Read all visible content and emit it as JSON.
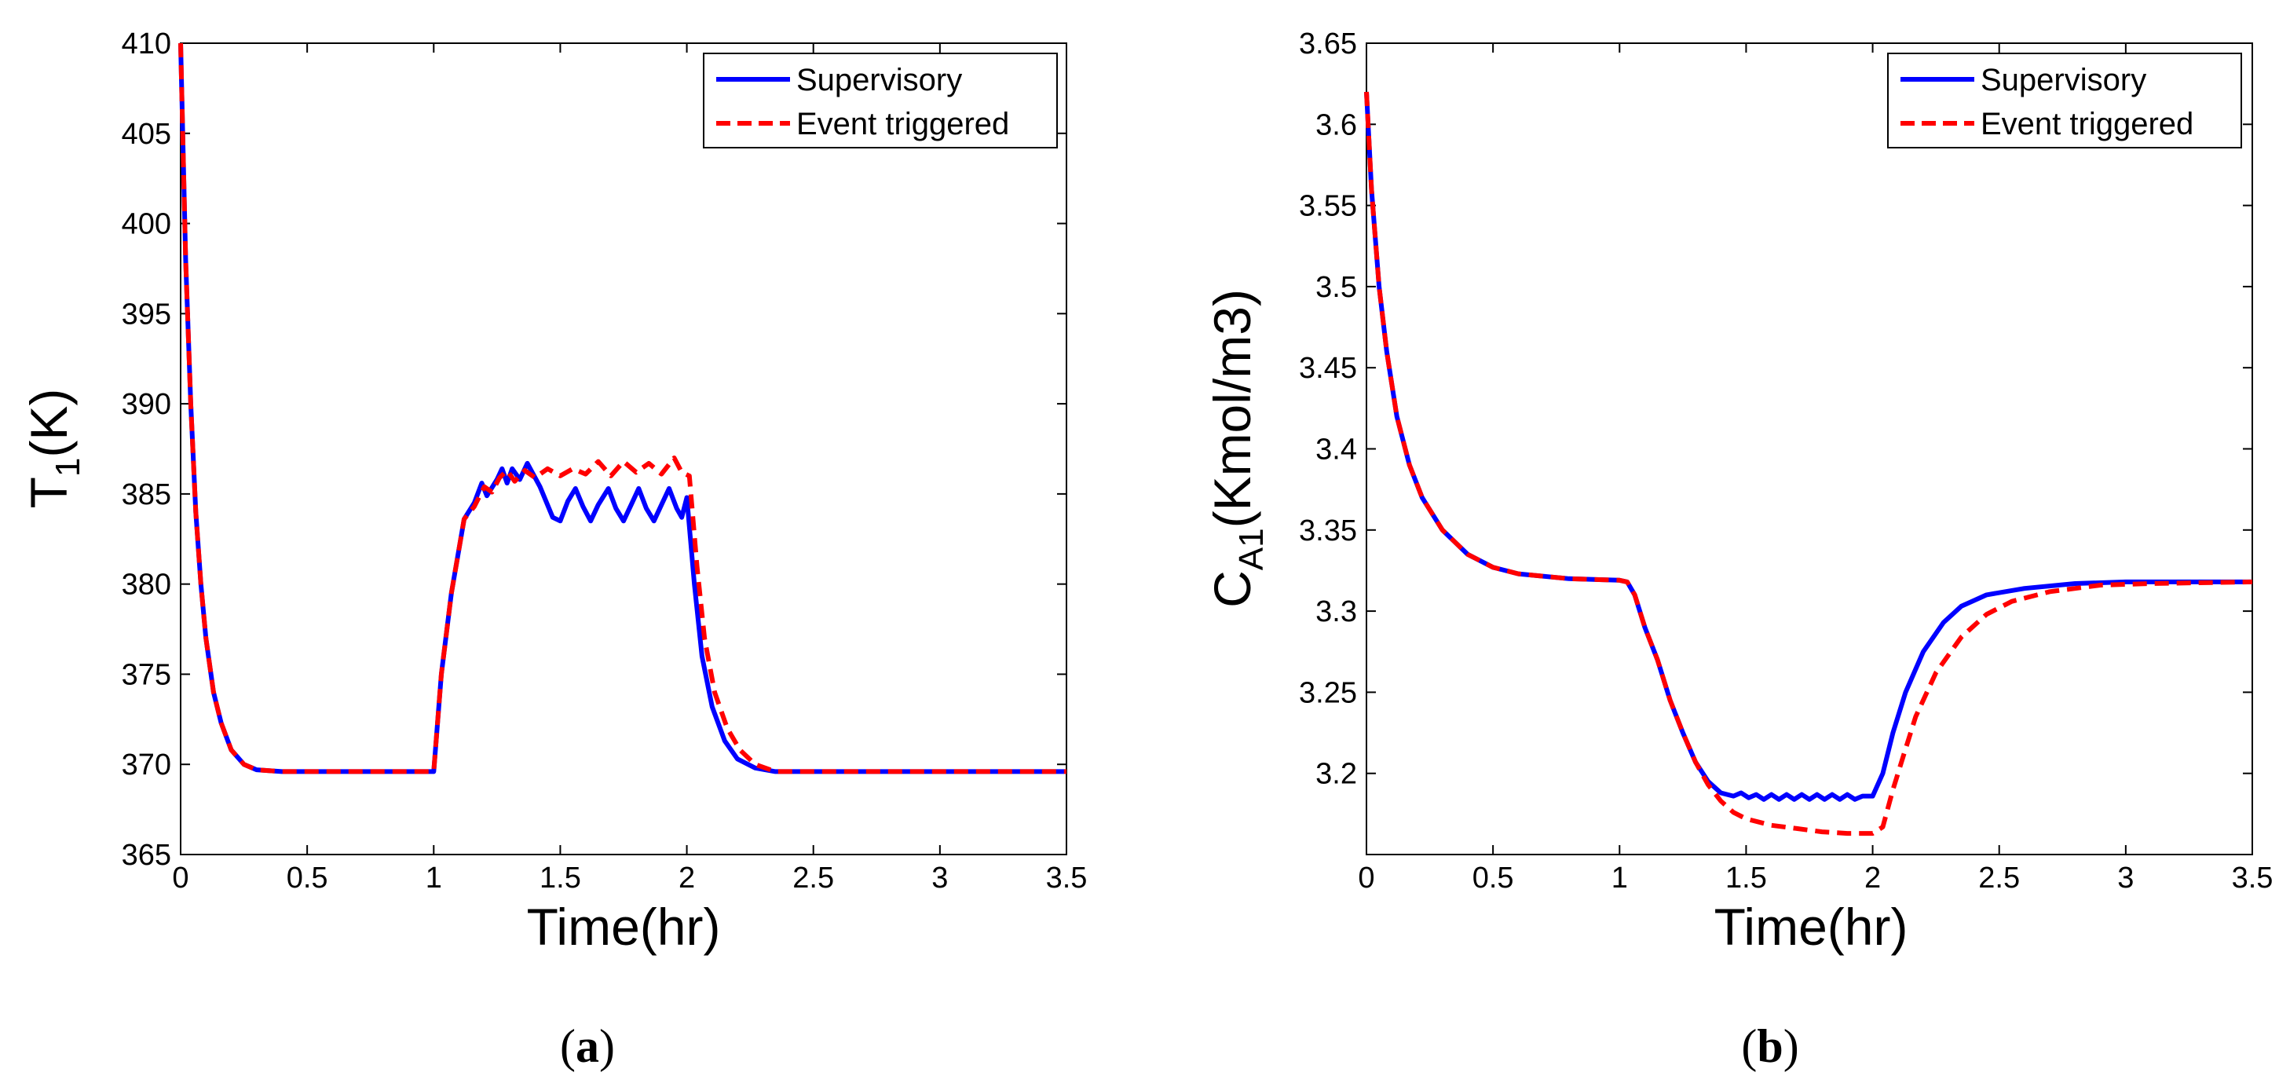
{
  "chart_data": [
    {
      "type": "line",
      "panel": "a",
      "caption_open": "(",
      "caption_letter": "a",
      "caption_close": ")",
      "xlabel": "Time(hr)",
      "ylabel_main": "T",
      "ylabel_sub": "1",
      "ylabel_rest": "(K)",
      "xlim": [
        0,
        3.5
      ],
      "ylim": [
        365,
        410
      ],
      "xticks": [
        "0",
        "0.5",
        "1",
        "1.5",
        "2",
        "2.5",
        "3",
        "3.5"
      ],
      "yticks": [
        "365",
        "370",
        "375",
        "380",
        "385",
        "390",
        "395",
        "400",
        "405",
        "410"
      ],
      "legend_position": "top-right",
      "series": [
        {
          "name": "Supervisory",
          "color": "#0000ff",
          "style": "solid",
          "points": [
            [
              0,
              410
            ],
            [
              0.02,
              398
            ],
            [
              0.04,
              390
            ],
            [
              0.06,
              384
            ],
            [
              0.08,
              380
            ],
            [
              0.1,
              377
            ],
            [
              0.13,
              374
            ],
            [
              0.16,
              372.3
            ],
            [
              0.2,
              370.8
            ],
            [
              0.25,
              370
            ],
            [
              0.3,
              369.7
            ],
            [
              0.4,
              369.6
            ],
            [
              1.0,
              369.6
            ],
            [
              1.03,
              375
            ],
            [
              1.07,
              379.5
            ],
            [
              1.12,
              383.6
            ],
            [
              1.16,
              384.5
            ],
            [
              1.19,
              385.6
            ],
            [
              1.21,
              384.9
            ],
            [
              1.25,
              385.8
            ],
            [
              1.27,
              386.4
            ],
            [
              1.29,
              385.6
            ],
            [
              1.31,
              386.4
            ],
            [
              1.34,
              385.8
            ],
            [
              1.37,
              386.7
            ],
            [
              1.42,
              385.4
            ],
            [
              1.47,
              383.7
            ],
            [
              1.5,
              383.5
            ],
            [
              1.53,
              384.6
            ],
            [
              1.56,
              385.3
            ],
            [
              1.59,
              384.3
            ],
            [
              1.62,
              383.5
            ],
            [
              1.65,
              384.4
            ],
            [
              1.69,
              385.3
            ],
            [
              1.72,
              384.2
            ],
            [
              1.75,
              383.5
            ],
            [
              1.78,
              384.4
            ],
            [
              1.81,
              385.3
            ],
            [
              1.84,
              384.2
            ],
            [
              1.87,
              383.5
            ],
            [
              1.9,
              384.4
            ],
            [
              1.93,
              385.3
            ],
            [
              1.96,
              384.2
            ],
            [
              1.98,
              383.7
            ],
            [
              2.0,
              384.8
            ],
            [
              2.03,
              380
            ],
            [
              2.06,
              376
            ],
            [
              2.1,
              373.2
            ],
            [
              2.15,
              371.3
            ],
            [
              2.2,
              370.3
            ],
            [
              2.27,
              369.8
            ],
            [
              2.35,
              369.6
            ],
            [
              3.5,
              369.6
            ]
          ]
        },
        {
          "name": "Event triggered",
          "color": "#ff0000",
          "style": "dashed",
          "points": [
            [
              0,
              410
            ],
            [
              0.02,
              398
            ],
            [
              0.04,
              390
            ],
            [
              0.06,
              384
            ],
            [
              0.08,
              380
            ],
            [
              0.1,
              377
            ],
            [
              0.13,
              374
            ],
            [
              0.16,
              372.3
            ],
            [
              0.2,
              370.8
            ],
            [
              0.25,
              370
            ],
            [
              0.3,
              369.7
            ],
            [
              0.4,
              369.6
            ],
            [
              1.0,
              369.6
            ],
            [
              1.03,
              375
            ],
            [
              1.07,
              379.5
            ],
            [
              1.12,
              383.6
            ],
            [
              1.16,
              384.3
            ],
            [
              1.2,
              385.4
            ],
            [
              1.23,
              385.1
            ],
            [
              1.26,
              385.9
            ],
            [
              1.29,
              386.3
            ],
            [
              1.32,
              385.7
            ],
            [
              1.36,
              386.3
            ],
            [
              1.4,
              385.9
            ],
            [
              1.45,
              386.4
            ],
            [
              1.5,
              386.0
            ],
            [
              1.55,
              386.4
            ],
            [
              1.6,
              386.1
            ],
            [
              1.65,
              386.8
            ],
            [
              1.7,
              386.0
            ],
            [
              1.75,
              386.8
            ],
            [
              1.8,
              386.2
            ],
            [
              1.85,
              386.7
            ],
            [
              1.9,
              386.1
            ],
            [
              1.95,
              387.0
            ],
            [
              1.98,
              386.2
            ],
            [
              2.01,
              386.0
            ],
            [
              2.04,
              381
            ],
            [
              2.07,
              377
            ],
            [
              2.11,
              374
            ],
            [
              2.16,
              372
            ],
            [
              2.21,
              370.8
            ],
            [
              2.27,
              370
            ],
            [
              2.35,
              369.6
            ],
            [
              3.5,
              369.6
            ]
          ]
        }
      ]
    },
    {
      "type": "line",
      "panel": "b",
      "caption_open": "(",
      "caption_letter": "b",
      "caption_close": ")",
      "xlabel": "Time(hr)",
      "ylabel_main": "C",
      "ylabel_sub": "A1",
      "ylabel_rest": "(Kmol/m3)",
      "xlim": [
        0,
        3.5
      ],
      "ylim": [
        3.15,
        3.65
      ],
      "xticks": [
        "0",
        "0.5",
        "1",
        "1.5",
        "2",
        "2.5",
        "3",
        "3.5"
      ],
      "yticks": [
        "3.2",
        "3.25",
        "3.3",
        "3.35",
        "3.4",
        "3.45",
        "3.5",
        "3.55",
        "3.6",
        "3.65"
      ],
      "legend_position": "top-right",
      "series": [
        {
          "name": "Supervisory",
          "color": "#0000ff",
          "style": "solid",
          "points": [
            [
              0,
              3.62
            ],
            [
              0.02,
              3.56
            ],
            [
              0.05,
              3.5
            ],
            [
              0.08,
              3.46
            ],
            [
              0.12,
              3.42
            ],
            [
              0.17,
              3.39
            ],
            [
              0.22,
              3.37
            ],
            [
              0.3,
              3.35
            ],
            [
              0.4,
              3.335
            ],
            [
              0.5,
              3.327
            ],
            [
              0.6,
              3.323
            ],
            [
              0.8,
              3.32
            ],
            [
              1.0,
              3.319
            ],
            [
              1.03,
              3.318
            ],
            [
              1.06,
              3.31
            ],
            [
              1.1,
              3.29
            ],
            [
              1.15,
              3.27
            ],
            [
              1.2,
              3.245
            ],
            [
              1.25,
              3.225
            ],
            [
              1.3,
              3.207
            ],
            [
              1.35,
              3.195
            ],
            [
              1.4,
              3.188
            ],
            [
              1.45,
              3.186
            ],
            [
              1.48,
              3.188
            ],
            [
              1.51,
              3.185
            ],
            [
              1.54,
              3.187
            ],
            [
              1.57,
              3.184
            ],
            [
              1.6,
              3.187
            ],
            [
              1.63,
              3.184
            ],
            [
              1.66,
              3.187
            ],
            [
              1.69,
              3.184
            ],
            [
              1.72,
              3.187
            ],
            [
              1.75,
              3.184
            ],
            [
              1.78,
              3.187
            ],
            [
              1.81,
              3.184
            ],
            [
              1.84,
              3.187
            ],
            [
              1.87,
              3.184
            ],
            [
              1.9,
              3.187
            ],
            [
              1.93,
              3.184
            ],
            [
              1.96,
              3.186
            ],
            [
              2.0,
              3.186
            ],
            [
              2.04,
              3.2
            ],
            [
              2.08,
              3.225
            ],
            [
              2.13,
              3.25
            ],
            [
              2.2,
              3.275
            ],
            [
              2.28,
              3.293
            ],
            [
              2.35,
              3.303
            ],
            [
              2.45,
              3.31
            ],
            [
              2.6,
              3.314
            ],
            [
              2.8,
              3.317
            ],
            [
              3.0,
              3.318
            ],
            [
              3.5,
              3.318
            ]
          ]
        },
        {
          "name": "Event triggered",
          "color": "#ff0000",
          "style": "dashed",
          "points": [
            [
              0,
              3.62
            ],
            [
              0.02,
              3.56
            ],
            [
              0.05,
              3.5
            ],
            [
              0.08,
              3.46
            ],
            [
              0.12,
              3.42
            ],
            [
              0.17,
              3.39
            ],
            [
              0.22,
              3.37
            ],
            [
              0.3,
              3.35
            ],
            [
              0.4,
              3.335
            ],
            [
              0.5,
              3.327
            ],
            [
              0.6,
              3.323
            ],
            [
              0.8,
              3.32
            ],
            [
              1.0,
              3.319
            ],
            [
              1.03,
              3.318
            ],
            [
              1.06,
              3.31
            ],
            [
              1.1,
              3.29
            ],
            [
              1.15,
              3.27
            ],
            [
              1.2,
              3.245
            ],
            [
              1.25,
              3.225
            ],
            [
              1.3,
              3.207
            ],
            [
              1.35,
              3.193
            ],
            [
              1.4,
              3.183
            ],
            [
              1.45,
              3.176
            ],
            [
              1.5,
              3.172
            ],
            [
              1.6,
              3.168
            ],
            [
              1.7,
              3.166
            ],
            [
              1.8,
              3.164
            ],
            [
              1.9,
              3.163
            ],
            [
              2.0,
              3.163
            ],
            [
              2.04,
              3.167
            ],
            [
              2.08,
              3.19
            ],
            [
              2.12,
              3.21
            ],
            [
              2.17,
              3.235
            ],
            [
              2.25,
              3.262
            ],
            [
              2.35,
              3.284
            ],
            [
              2.45,
              3.298
            ],
            [
              2.55,
              3.306
            ],
            [
              2.7,
              3.312
            ],
            [
              2.9,
              3.316
            ],
            [
              3.1,
              3.317
            ],
            [
              3.5,
              3.318
            ]
          ]
        }
      ]
    }
  ]
}
